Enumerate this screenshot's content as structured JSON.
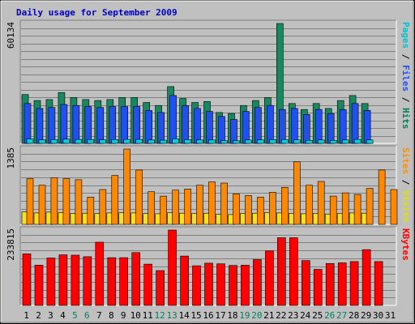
{
  "chart_data": {
    "title": "Daily usage for September 2009",
    "type": "bar",
    "categories": [
      "1",
      "2",
      "3",
      "4",
      "5",
      "6",
      "7",
      "8",
      "9",
      "10",
      "11",
      "12",
      "13",
      "14",
      "15",
      "16",
      "17",
      "18",
      "19",
      "20",
      "21",
      "22",
      "23",
      "24",
      "25",
      "26",
      "27",
      "28",
      "29",
      "30",
      "31"
    ],
    "weekend_days": [
      "5",
      "6",
      "12",
      "13",
      "19",
      "20",
      "26",
      "27"
    ],
    "panels": [
      {
        "id": "top",
        "max_label": "60134",
        "ymax": 60134,
        "right_labels": [
          {
            "text": "Pages",
            "color": "#00C0D0"
          },
          {
            "text": " / ",
            "color": "#000000"
          },
          {
            "text": "Files",
            "color": "#2050FF"
          },
          {
            "text": " / ",
            "color": "#000000"
          },
          {
            "text": "Hits",
            "color": "#00805A"
          }
        ],
        "series": [
          {
            "name": "Hits",
            "color": "#188860",
            "values": [
              24500,
              21500,
              22000,
              25500,
              23000,
              22000,
              21500,
              22000,
              23000,
              23000,
              20500,
              19000,
              28500,
              22500,
              20500,
              21000,
              15500,
              15000,
              19000,
              21500,
              23000,
              60134,
              20000,
              17000,
              20000,
              17500,
              21500,
              24000,
              20000,
              null,
              null
            ]
          },
          {
            "name": "Files",
            "color": "#2050F0",
            "values": [
              20000,
              17500,
              18000,
              19500,
              19000,
              18500,
              18000,
              18500,
              18500,
              18500,
              16500,
              15500,
              24000,
              19000,
              17500,
              16000,
              13500,
              12000,
              16000,
              18000,
              19000,
              17000,
              17500,
              14500,
              17000,
              15000,
              17000,
              20000,
              16500,
              null,
              null
            ]
          },
          {
            "name": "Pages",
            "color": "#00D0E0",
            "values": [
              2200,
              1800,
              1900,
              2100,
              2000,
              1900,
              1800,
              1900,
              2000,
              2000,
              1700,
              1600,
              2300,
              1900,
              1700,
              1700,
              1400,
              1300,
              1700,
              1800,
              1900,
              1900,
              1800,
              1500,
              1700,
              1500,
              1700,
              2000,
              1700,
              null,
              null
            ]
          }
        ]
      },
      {
        "id": "middle",
        "max_label": "1385",
        "ymax": 1385,
        "right_labels": [
          {
            "text": "Sites",
            "color": "#FF9000"
          },
          {
            "text": " / ",
            "color": "#000000"
          },
          {
            "text": "Visits",
            "color": "#E0E000"
          }
        ],
        "series": [
          {
            "name": "Visits",
            "color": "#F8E020",
            "values": [
              230,
              210,
              225,
              215,
              200,
              205,
              200,
              210,
              215,
              210,
              200,
              195,
              215,
              205,
              200,
              205,
              185,
              180,
              200,
              205,
              215,
              210,
              200,
              195,
              200,
              190,
              200,
              210,
              205,
              null,
              null
            ]
          },
          {
            "name": "Sites",
            "color": "#FF8800",
            "values": [
              840,
              720,
              860,
              840,
              820,
              500,
              640,
              900,
              1385,
              1000,
              600,
              520,
              630,
              650,
              720,
              780,
              760,
              560,
              530,
              500,
              590,
              680,
              1150,
              720,
              790,
              520,
              580,
              550,
              660,
              1000,
              640
            ]
          }
        ]
      },
      {
        "id": "bottom",
        "max_label": "233815",
        "ymax": 233815,
        "right_labels": [
          {
            "text": "KBytes",
            "color": "#FF0000"
          }
        ],
        "series": [
          {
            "name": "KBytes",
            "color": "#FF0000",
            "values": [
              160000,
              125000,
              147000,
              157000,
              156000,
              151000,
              196000,
              148000,
              148000,
              164000,
              128000,
              108000,
              233815,
              153000,
              123000,
              131000,
              129000,
              124000,
              125000,
              142000,
              169000,
              210000,
              210000,
              139000,
              112000,
              130000,
              132000,
              136000,
              173000,
              136000,
              null
            ]
          }
        ]
      }
    ]
  }
}
